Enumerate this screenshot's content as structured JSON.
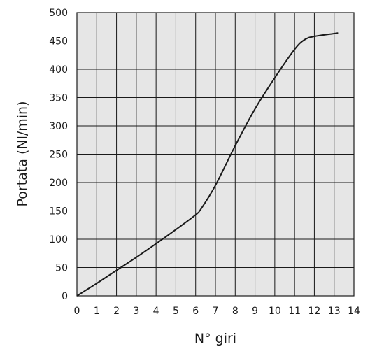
{
  "chart_data": {
    "type": "line",
    "title": "",
    "xlabel": "N° giri",
    "ylabel": "Portata (Nl/min)",
    "xlim": [
      0,
      14
    ],
    "ylim": [
      0,
      500
    ],
    "x_ticks": [
      "0",
      "1",
      "2",
      "3",
      "4",
      "5",
      "6",
      "7",
      "8",
      "9",
      "10",
      "11",
      "12",
      "13",
      "14"
    ],
    "y_ticks": [
      "0",
      "50",
      "100",
      "150",
      "200",
      "250",
      "300",
      "350",
      "400",
      "450",
      "500"
    ],
    "grid": true,
    "series": [
      {
        "x": [
          0,
          1,
          2,
          3,
          4,
          5,
          6,
          6.3,
          7,
          8,
          9,
          10,
          11,
          11.5,
          12,
          13,
          13.2
        ],
        "y": [
          0,
          22,
          45,
          68,
          92,
          117,
          143,
          155,
          195,
          265,
          330,
          385,
          435,
          452,
          458,
          463,
          464
        ]
      }
    ],
    "colors": {
      "line": "#1a1a1a",
      "plot_bg": "#e6e6e6",
      "grid": "#1a1a1a"
    }
  }
}
